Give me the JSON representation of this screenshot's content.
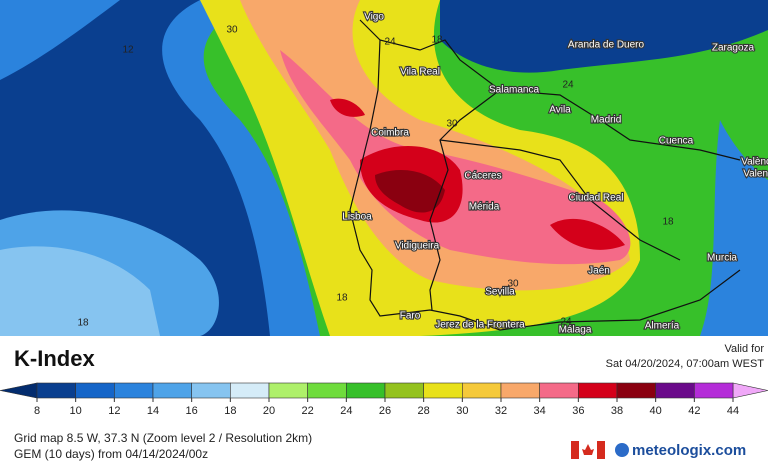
{
  "header": {
    "title": "K-Index",
    "valid_label": "Valid for",
    "valid_time": "Sat 04/20/2024, 07:00am WEST"
  },
  "cities": [
    "Vigo",
    "Vila Real",
    "Salamanca",
    "Aranda de Duero",
    "Zaragoza",
    "Avila",
    "Madrid",
    "Coimbra",
    "Cuenca",
    "València",
    "Valencia",
    "Cáceres",
    "Mérida",
    "Ciudad Real",
    "Lisboa",
    "Vidigueira",
    "Sevilla",
    "Jaén",
    "Murcia",
    "Faro",
    "Jerez de la Frontera",
    "Málaga",
    "Almería"
  ],
  "contour_labels": [
    "30",
    "12",
    "24",
    "18",
    "24",
    "30",
    "18",
    "18",
    "18",
    "30",
    "24"
  ],
  "legend": {
    "ticks": [
      8,
      10,
      12,
      14,
      16,
      18,
      20,
      22,
      24,
      26,
      28,
      30,
      32,
      34,
      36,
      38,
      40,
      42,
      44
    ],
    "under_color": "#032c6e",
    "over_color": "#f0a8f8",
    "colors": [
      "#0a3f8f",
      "#1565c8",
      "#2b83dd",
      "#4ea3e8",
      "#86c4f0",
      "#d5ecf8",
      "#aef06a",
      "#6fdc3c",
      "#37c02a",
      "#94c21e",
      "#e8e11a",
      "#f5c93a",
      "#f8a86a",
      "#f46a88",
      "#d4001a",
      "#8a0010",
      "#6a0a8a",
      "#b42cd8",
      "#de70f0"
    ]
  },
  "footer": {
    "grid": "Grid map 8.5 W, 37.3 N (Zoom level 2 / Resolution 2km)",
    "model": "GEM (10 days) from 04/14/2024/00z",
    "brand": "meteologix.com"
  }
}
